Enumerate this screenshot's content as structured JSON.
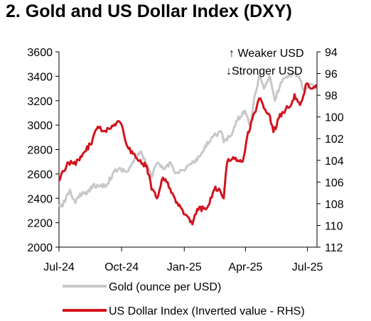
{
  "title": "2. Gold and US Dollar Index (DXY)",
  "chart_data": {
    "type": "line",
    "title": "2. Gold and US Dollar Index (DXY)",
    "x_ticks": [
      "Jul-24",
      "Oct-24",
      "Jan-25",
      "Apr-25",
      "Jul-25"
    ],
    "x_range": [
      "2024-07-01",
      "2025-07-15"
    ],
    "y_left": {
      "min": 2000,
      "max": 3600,
      "ticks": [
        2000,
        2200,
        2400,
        2600,
        2800,
        3000,
        3200,
        3400,
        3600
      ]
    },
    "y_right": {
      "min": 94,
      "max": 112,
      "inverted": true,
      "ticks": [
        94,
        96,
        98,
        100,
        102,
        104,
        106,
        108,
        110,
        112
      ]
    },
    "annotations": {
      "weaker": "Weaker USD",
      "stronger": "Stronger USD"
    },
    "series": [
      {
        "name": "Gold (ounce per USD)",
        "axis": "left",
        "color": "#c8c8c8",
        "points": [
          [
            "2024-07-01",
            2330
          ],
          [
            "2024-07-10",
            2370
          ],
          [
            "2024-07-17",
            2470
          ],
          [
            "2024-07-25",
            2360
          ],
          [
            "2024-08-01",
            2440
          ],
          [
            "2024-08-10",
            2430
          ],
          [
            "2024-08-20",
            2510
          ],
          [
            "2024-08-31",
            2500
          ],
          [
            "2024-09-10",
            2520
          ],
          [
            "2024-09-20",
            2620
          ],
          [
            "2024-09-30",
            2640
          ],
          [
            "2024-10-10",
            2620
          ],
          [
            "2024-10-20",
            2720
          ],
          [
            "2024-10-30",
            2780
          ],
          [
            "2024-11-05",
            2700
          ],
          [
            "2024-11-14",
            2570
          ],
          [
            "2024-11-22",
            2690
          ],
          [
            "2024-12-01",
            2640
          ],
          [
            "2024-12-12",
            2690
          ],
          [
            "2024-12-20",
            2610
          ],
          [
            "2024-12-31",
            2630
          ],
          [
            "2025-01-10",
            2680
          ],
          [
            "2025-01-20",
            2710
          ],
          [
            "2025-01-30",
            2800
          ],
          [
            "2025-02-10",
            2900
          ],
          [
            "2025-02-24",
            2950
          ],
          [
            "2025-02-28",
            2860
          ],
          [
            "2025-03-10",
            2910
          ],
          [
            "2025-03-20",
            3040
          ],
          [
            "2025-03-31",
            3120
          ],
          [
            "2025-04-08",
            2990
          ],
          [
            "2025-04-14",
            3230
          ],
          [
            "2025-04-22",
            3420
          ],
          [
            "2025-04-28",
            3300
          ],
          [
            "2025-05-06",
            3400
          ],
          [
            "2025-05-14",
            3200
          ],
          [
            "2025-05-23",
            3350
          ],
          [
            "2025-06-02",
            3390
          ],
          [
            "2025-06-13",
            3430
          ],
          [
            "2025-06-20",
            3370
          ],
          [
            "2025-06-27",
            3280
          ],
          [
            "2025-07-03",
            3340
          ],
          [
            "2025-07-10",
            3330
          ]
        ]
      },
      {
        "name": "US Dollar Index (Inverted value - RHS)",
        "axis": "right",
        "color": "#d2141e",
        "points": [
          [
            "2024-07-01",
            105.9
          ],
          [
            "2024-07-08",
            105.0
          ],
          [
            "2024-07-15",
            104.2
          ],
          [
            "2024-07-22",
            104.3
          ],
          [
            "2024-07-31",
            104.0
          ],
          [
            "2024-08-08",
            103.2
          ],
          [
            "2024-08-16",
            102.5
          ],
          [
            "2024-08-27",
            100.9
          ],
          [
            "2024-09-05",
            101.3
          ],
          [
            "2024-09-17",
            100.8
          ],
          [
            "2024-09-27",
            100.4
          ],
          [
            "2024-10-01",
            100.7
          ],
          [
            "2024-10-08",
            102.5
          ],
          [
            "2024-10-18",
            103.4
          ],
          [
            "2024-10-25",
            104.0
          ],
          [
            "2024-11-01",
            104.3
          ],
          [
            "2024-11-07",
            104.5
          ],
          [
            "2024-11-14",
            106.7
          ],
          [
            "2024-11-22",
            107.5
          ],
          [
            "2024-11-29",
            105.8
          ],
          [
            "2024-12-06",
            106.0
          ],
          [
            "2024-12-13",
            107.0
          ],
          [
            "2024-12-20",
            107.9
          ],
          [
            "2025-01-02",
            109.0
          ],
          [
            "2025-01-13",
            109.9
          ],
          [
            "2025-01-20",
            108.5
          ],
          [
            "2025-01-31",
            108.4
          ],
          [
            "2025-02-07",
            108.0
          ],
          [
            "2025-02-14",
            106.7
          ],
          [
            "2025-02-21",
            106.6
          ],
          [
            "2025-02-28",
            107.5
          ],
          [
            "2025-03-05",
            104.2
          ],
          [
            "2025-03-14",
            103.7
          ],
          [
            "2025-03-21",
            104.0
          ],
          [
            "2025-03-28",
            104.1
          ],
          [
            "2025-04-03",
            102.0
          ],
          [
            "2025-04-11",
            100.2
          ],
          [
            "2025-04-21",
            98.3
          ],
          [
            "2025-04-28",
            99.2
          ],
          [
            "2025-05-05",
            99.7
          ],
          [
            "2025-05-12",
            101.4
          ],
          [
            "2025-05-20",
            100.1
          ],
          [
            "2025-05-30",
            99.3
          ],
          [
            "2025-06-06",
            99.0
          ],
          [
            "2025-06-12",
            97.9
          ],
          [
            "2025-06-20",
            98.9
          ],
          [
            "2025-06-30",
            96.9
          ],
          [
            "2025-07-07",
            97.4
          ],
          [
            "2025-07-14",
            97.0
          ]
        ]
      }
    ],
    "legend": {
      "placement": "bottom"
    },
    "grid": false
  }
}
